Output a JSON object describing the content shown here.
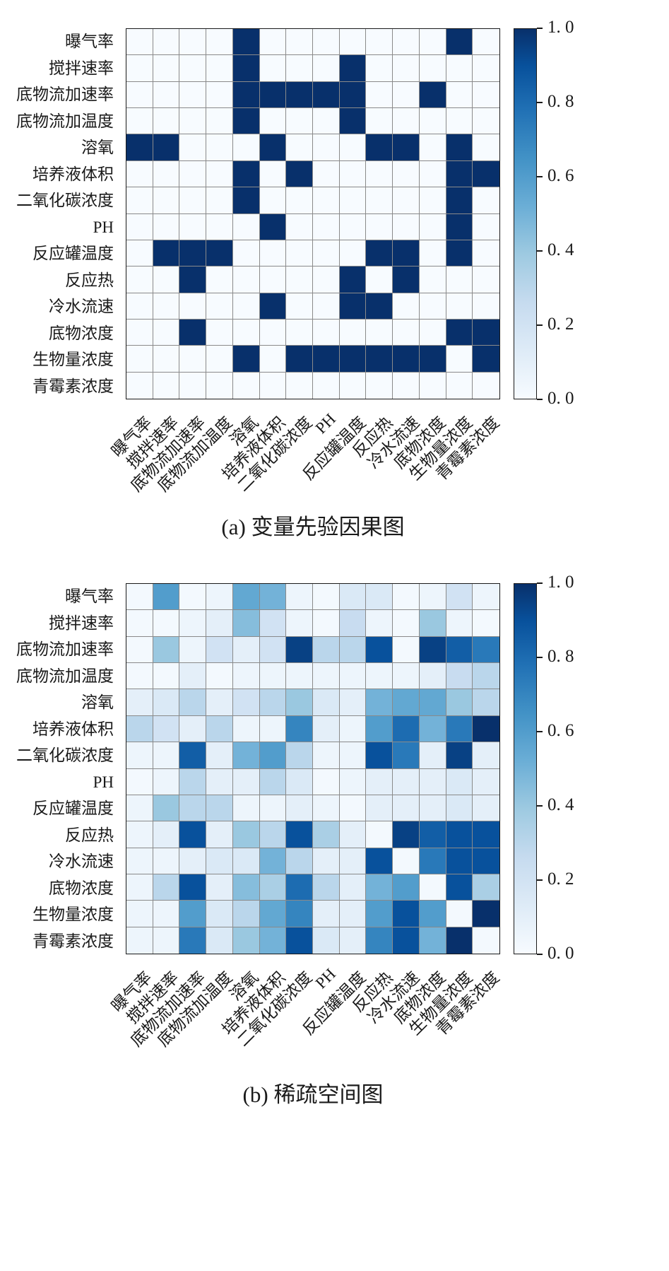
{
  "page": {
    "background": "#ffffff"
  },
  "variables": [
    "曝气率",
    "搅拌速率",
    "底物流加速率",
    "底物流加温度",
    "溶氧",
    "培养液体积",
    "二氧化碳浓度",
    "PH",
    "反应罐温度",
    "反应热",
    "冷水流速",
    "底物浓度",
    "生物量浓度",
    "青霉素浓度"
  ],
  "colormap": {
    "name": "Blues",
    "stops": [
      {
        "t": 0.0,
        "color": "#f7fbff"
      },
      {
        "t": 0.13,
        "color": "#deebf7"
      },
      {
        "t": 0.26,
        "color": "#c6dbef"
      },
      {
        "t": 0.39,
        "color": "#9ecae1"
      },
      {
        "t": 0.52,
        "color": "#6baed6"
      },
      {
        "t": 0.65,
        "color": "#4292c6"
      },
      {
        "t": 0.78,
        "color": "#2171b5"
      },
      {
        "t": 0.9,
        "color": "#08519c"
      },
      {
        "t": 1.0,
        "color": "#08306b"
      }
    ]
  },
  "colorbar": {
    "tick_labels": [
      "1. 0",
      "0. 8",
      "0. 6",
      "0. 4",
      "0. 2",
      "0. 0"
    ],
    "min_color": "#f7fbff",
    "max_color": "#08306b"
  },
  "chart_data": [
    {
      "type": "heatmap",
      "title": "(a) 变量先验因果图",
      "colormap": "Blues",
      "value_range": [
        0,
        1
      ],
      "legend_position": "right-colorbar",
      "x_labels": [
        "曝气率",
        "搅拌速率",
        "底物流加速率",
        "底物流加温度",
        "溶氧",
        "培养液体积",
        "二氧化碳浓度",
        "PH",
        "反应罐温度",
        "反应热",
        "冷水流速",
        "底物浓度",
        "生物量浓度",
        "青霉素浓度"
      ],
      "y_labels": [
        "曝气率",
        "搅拌速率",
        "底物流加速率",
        "底物流加温度",
        "溶氧",
        "培养液体积",
        "二氧化碳浓度",
        "PH",
        "反应罐温度",
        "反应热",
        "冷水流速",
        "底物浓度",
        "生物量浓度",
        "青霉素浓度"
      ],
      "values": [
        [
          0,
          0,
          0,
          0,
          1,
          0,
          0,
          0,
          0,
          0,
          0,
          0,
          1,
          0
        ],
        [
          0,
          0,
          0,
          0,
          1,
          0,
          0,
          0,
          1,
          0,
          0,
          0,
          0,
          0
        ],
        [
          0,
          0,
          0,
          0,
          1,
          1,
          1,
          1,
          1,
          0,
          0,
          1,
          0,
          0
        ],
        [
          0,
          0,
          0,
          0,
          1,
          0,
          0,
          0,
          1,
          0,
          0,
          0,
          0,
          0
        ],
        [
          1,
          1,
          0,
          0,
          0,
          1,
          0,
          0,
          0,
          1,
          1,
          0,
          1,
          0
        ],
        [
          0,
          0,
          0,
          0,
          1,
          0,
          1,
          0,
          0,
          0,
          0,
          0,
          1,
          1
        ],
        [
          0,
          0,
          0,
          0,
          1,
          0,
          0,
          0,
          0,
          0,
          0,
          0,
          1,
          0
        ],
        [
          0,
          0,
          0,
          0,
          0,
          1,
          0,
          0,
          0,
          0,
          0,
          0,
          1,
          0
        ],
        [
          0,
          1,
          1,
          1,
          0,
          0,
          0,
          0,
          0,
          1,
          1,
          0,
          1,
          0
        ],
        [
          0,
          0,
          1,
          0,
          0,
          0,
          0,
          0,
          1,
          0,
          1,
          0,
          0,
          0
        ],
        [
          0,
          0,
          0,
          0,
          0,
          1,
          0,
          0,
          1,
          1,
          0,
          0,
          0,
          0
        ],
        [
          0,
          0,
          1,
          0,
          0,
          0,
          0,
          0,
          0,
          0,
          0,
          0,
          1,
          1
        ],
        [
          0,
          0,
          0,
          0,
          1,
          0,
          1,
          1,
          1,
          1,
          1,
          1,
          0,
          1
        ],
        [
          0,
          0,
          0,
          0,
          0,
          0,
          0,
          0,
          0,
          0,
          0,
          0,
          0,
          0
        ]
      ]
    },
    {
      "type": "heatmap",
      "title": "(b) 稀疏空间图",
      "colormap": "Blues",
      "value_range": [
        0,
        1
      ],
      "legend_position": "right-colorbar",
      "x_labels": [
        "曝气率",
        "搅拌速率",
        "底物流加速率",
        "底物流加温度",
        "溶氧",
        "培养液体积",
        "二氧化碳浓度",
        "PH",
        "反应罐温度",
        "反应热",
        "冷水流速",
        "底物浓度",
        "生物量浓度",
        "青霉素浓度"
      ],
      "y_labels": [
        "曝气率",
        "搅拌速率",
        "底物流加速率",
        "底物流加温度",
        "溶氧",
        "培养液体积",
        "二氧化碳浓度",
        "PH",
        "反应罐温度",
        "反应热",
        "冷水流速",
        "底物浓度",
        "生物量浓度",
        "青霉素浓度"
      ],
      "values": [
        [
          0.02,
          0.6,
          0.02,
          0.05,
          0.55,
          0.5,
          0.05,
          0.02,
          0.15,
          0.15,
          0.02,
          0.05,
          0.2,
          0.05
        ],
        [
          0.02,
          0.02,
          0.05,
          0.1,
          0.45,
          0.2,
          0.05,
          0.02,
          0.25,
          0.05,
          0.02,
          0.4,
          0.05,
          0.02
        ],
        [
          0.02,
          0.4,
          0.05,
          0.2,
          0.1,
          0.2,
          0.95,
          0.3,
          0.3,
          0.9,
          0.02,
          0.95,
          0.85,
          0.75
        ],
        [
          0.02,
          0.02,
          0.1,
          0.02,
          0.05,
          0.05,
          0.05,
          0.05,
          0.05,
          0.05,
          0.05,
          0.1,
          0.25,
          0.3
        ],
        [
          0.1,
          0.15,
          0.3,
          0.1,
          0.2,
          0.3,
          0.4,
          0.15,
          0.1,
          0.5,
          0.55,
          0.55,
          0.4,
          0.3
        ],
        [
          0.3,
          0.2,
          0.1,
          0.3,
          0.05,
          0.05,
          0.7,
          0.1,
          0.05,
          0.6,
          0.8,
          0.5,
          0.75,
          1.0
        ],
        [
          0.05,
          0.05,
          0.85,
          0.1,
          0.5,
          0.6,
          0.3,
          0.05,
          0.05,
          0.9,
          0.75,
          0.1,
          0.95,
          0.1
        ],
        [
          0.02,
          0.05,
          0.3,
          0.1,
          0.1,
          0.3,
          0.15,
          0.02,
          0.05,
          0.1,
          0.1,
          0.1,
          0.15,
          0.1
        ],
        [
          0.05,
          0.4,
          0.3,
          0.3,
          0.05,
          0.05,
          0.1,
          0.05,
          0.02,
          0.1,
          0.1,
          0.1,
          0.15,
          0.1
        ],
        [
          0.05,
          0.1,
          0.9,
          0.1,
          0.4,
          0.3,
          0.9,
          0.35,
          0.1,
          0.02,
          0.95,
          0.85,
          0.9,
          0.9
        ],
        [
          0.05,
          0.05,
          0.1,
          0.15,
          0.15,
          0.5,
          0.3,
          0.1,
          0.1,
          0.9,
          0.02,
          0.75,
          0.9,
          0.9
        ],
        [
          0.05,
          0.3,
          0.9,
          0.1,
          0.45,
          0.35,
          0.8,
          0.3,
          0.1,
          0.5,
          0.6,
          0.02,
          0.9,
          0.35
        ],
        [
          0.05,
          0.05,
          0.6,
          0.15,
          0.3,
          0.55,
          0.7,
          0.1,
          0.1,
          0.6,
          0.9,
          0.6,
          0.02,
          1.0
        ],
        [
          0.05,
          0.05,
          0.75,
          0.15,
          0.4,
          0.5,
          0.9,
          0.15,
          0.1,
          0.7,
          0.9,
          0.5,
          1.0,
          0.02
        ]
      ]
    }
  ]
}
